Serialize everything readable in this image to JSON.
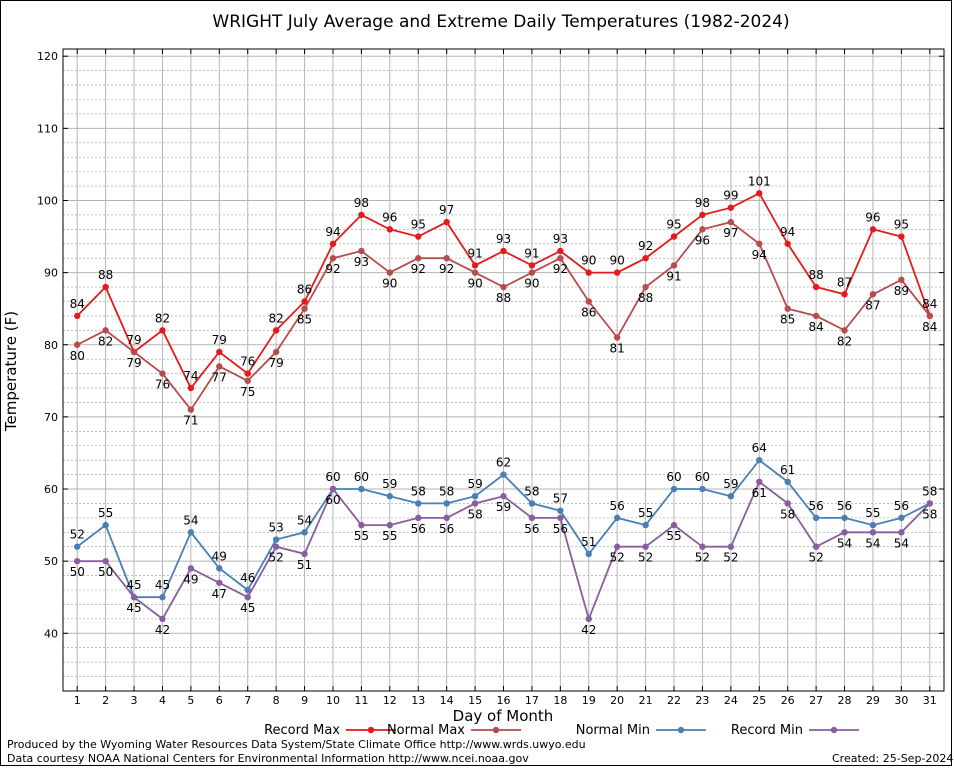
{
  "chart_data": {
    "type": "line",
    "title": "WRIGHT July Average and Extreme Daily Temperatures (1982-2024)",
    "xlabel": "Day of Month",
    "ylabel": "Temperature (F)",
    "xlim": [
      0.5,
      31.5
    ],
    "ylim": [
      32,
      121
    ],
    "yticks": [
      40,
      50,
      60,
      70,
      80,
      90,
      100,
      110,
      120
    ],
    "xticks": [
      1,
      2,
      3,
      4,
      5,
      6,
      7,
      8,
      9,
      10,
      11,
      12,
      13,
      14,
      15,
      16,
      17,
      18,
      19,
      20,
      21,
      22,
      23,
      24,
      25,
      26,
      27,
      28,
      29,
      30,
      31
    ],
    "x": [
      1,
      2,
      3,
      4,
      5,
      6,
      7,
      8,
      9,
      10,
      11,
      12,
      13,
      14,
      15,
      16,
      17,
      18,
      19,
      20,
      21,
      22,
      23,
      24,
      25,
      26,
      27,
      28,
      29,
      30,
      31
    ],
    "grid": true,
    "legend_position": "bottom",
    "series": [
      {
        "name": "Record Max",
        "color": "#e41a1c",
        "values": [
          84,
          88,
          79,
          82,
          74,
          79,
          76,
          82,
          86,
          94,
          98,
          96,
          95,
          97,
          91,
          93,
          91,
          93,
          90,
          90,
          92,
          95,
          98,
          99,
          101,
          94,
          88,
          87,
          96,
          95,
          84
        ]
      },
      {
        "name": "Normal Max",
        "color": "#b84c4c",
        "values": [
          80,
          82,
          79,
          76,
          71,
          77,
          75,
          79,
          85,
          92,
          93,
          90,
          92,
          92,
          90,
          88,
          90,
          92,
          86,
          81,
          88,
          91,
          96,
          97,
          94,
          85,
          84,
          82,
          87,
          89,
          84
        ]
      },
      {
        "name": "Normal Min",
        "color": "#4a7fb5",
        "values": [
          52,
          55,
          45,
          45,
          54,
          49,
          46,
          53,
          54,
          60,
          60,
          59,
          58,
          58,
          59,
          62,
          58,
          57,
          51,
          56,
          55,
          60,
          60,
          59,
          64,
          61,
          56,
          56,
          55,
          56,
          58
        ]
      },
      {
        "name": "Record Min",
        "color": "#8a5e9e",
        "values": [
          50,
          50,
          45,
          42,
          49,
          47,
          45,
          52,
          51,
          60,
          55,
          55,
          56,
          56,
          58,
          59,
          56,
          56,
          42,
          52,
          52,
          55,
          52,
          52,
          61,
          58,
          52,
          54,
          54,
          54,
          58
        ]
      }
    ]
  },
  "footer": {
    "line1": "Produced by the Wyoming Water Resources Data System/State Climate Office http://www.wrds.uwyo.edu",
    "line2": "Data courtesy NOAA National Centers for Environmental Information http://www.ncei.noaa.gov",
    "created": "Created:  25-Sep-2024"
  }
}
